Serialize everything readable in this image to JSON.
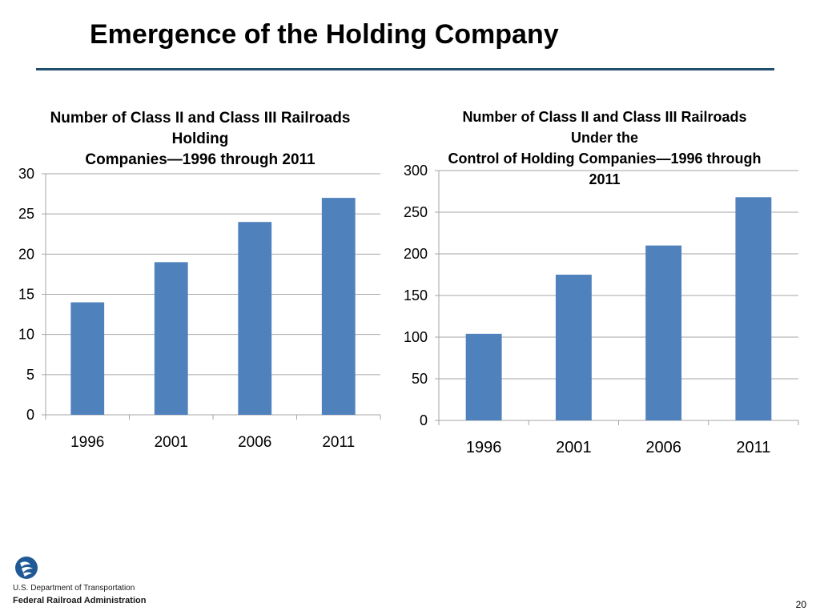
{
  "slide": {
    "title": "Emergence of the Holding Company",
    "page_number": "20"
  },
  "footer": {
    "logo_icon": "dot-logo-icon",
    "department": "U.S. Department of Transportation",
    "agency": "Federal Railroad Administration"
  },
  "colors": {
    "bar": "#4f81bd",
    "rule": "#1f4e6e",
    "gridline": "#a6a6a6",
    "logo": "#1f5a96"
  },
  "chart_data": [
    {
      "type": "bar",
      "title_lines": [
        "Number of Class II and Class III Railroads Holding",
        "Companies—1996 through 2011"
      ],
      "categories": [
        "1996",
        "2001",
        "2006",
        "2011"
      ],
      "values": [
        14,
        19,
        24,
        27
      ],
      "ylim": [
        0,
        30
      ],
      "yticks": [
        0,
        5,
        10,
        15,
        20,
        25,
        30
      ],
      "grid": true,
      "legend": "none",
      "xlabel": "",
      "ylabel": ""
    },
    {
      "type": "bar",
      "title_lines": [
        "Number of Class II and Class III Railroads Under the",
        "Control of Holding Companies—1996 through 2011"
      ],
      "categories": [
        "1996",
        "2001",
        "2006",
        "2011"
      ],
      "values": [
        104,
        175,
        210,
        268
      ],
      "ylim": [
        0,
        300
      ],
      "yticks": [
        0,
        50,
        100,
        150,
        200,
        250,
        300
      ],
      "grid": true,
      "legend": "none",
      "xlabel": "",
      "ylabel": ""
    }
  ]
}
